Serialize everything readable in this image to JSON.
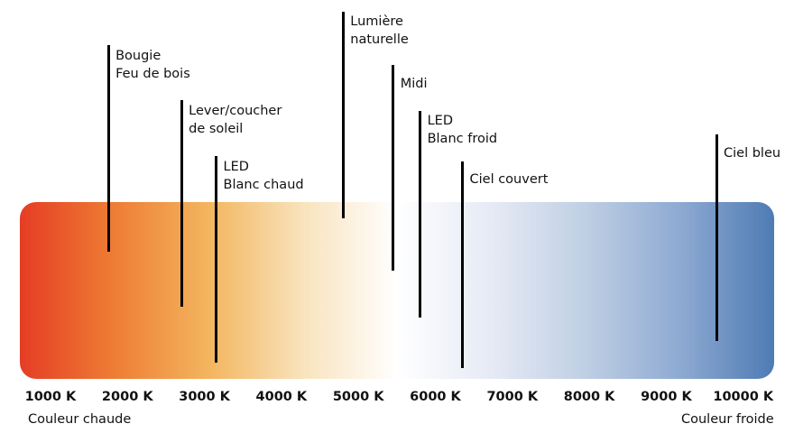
{
  "bar_colors": [
    "#e53d25",
    "#ee7d34",
    "#f3b55e",
    "#f8e3bc",
    "#ffffff",
    "#e6eaf5",
    "#bfcfe4",
    "#8eaad2",
    "#4f7bb4"
  ],
  "markers": [
    {
      "id": "bougie",
      "temperature_k": 1750,
      "text": "Bougie\nFeu de bois"
    },
    {
      "id": "lever-coucher",
      "temperature_k": 2700,
      "text": "Lever/coucher\nde soleil"
    },
    {
      "id": "led-blanc-chaud",
      "temperature_k": 3150,
      "text": "LED\nBlanc chaud"
    },
    {
      "id": "lumiere-naturelle",
      "temperature_k": 4800,
      "text": "Lumière\nnaturelle"
    },
    {
      "id": "midi",
      "temperature_k": 5450,
      "text": "Midi"
    },
    {
      "id": "led-blanc-froid",
      "temperature_k": 5800,
      "text": "LED\nBlanc froid"
    },
    {
      "id": "ciel-couvert",
      "temperature_k": 6350,
      "text": "Ciel couvert"
    },
    {
      "id": "ciel-bleu",
      "temperature_k": 9650,
      "text": "Ciel bleu"
    }
  ],
  "ticks": [
    "1000 K",
    "2000 K",
    "3000 K",
    "4000 K",
    "5000 K",
    "6000 K",
    "7000 K",
    "8000 K",
    "9000 K",
    "10000 K"
  ],
  "captions": {
    "warm": "Couleur chaude",
    "cold": "Couleur froide"
  }
}
